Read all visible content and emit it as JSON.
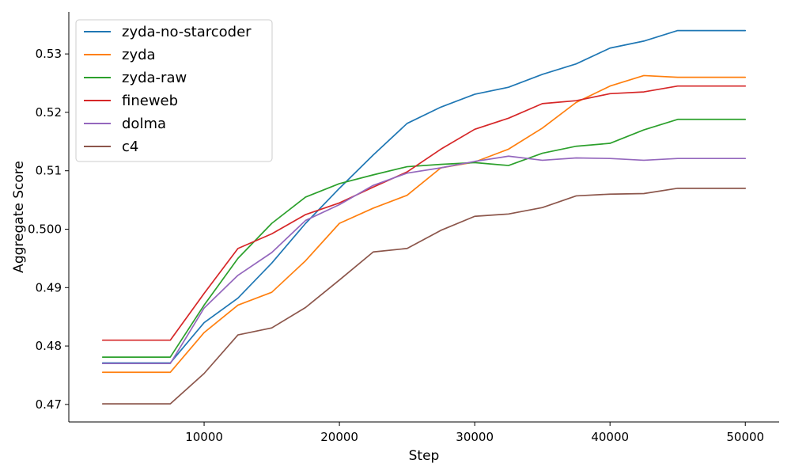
{
  "chart_data": {
    "type": "line",
    "xlabel": "Step",
    "ylabel": "Aggregate Score",
    "xlim": [
      0,
      52500
    ],
    "ylim": [
      0.467,
      0.5372
    ],
    "xticks": [
      10000,
      20000,
      30000,
      40000,
      50000
    ],
    "xtick_labels": [
      "10000",
      "20000",
      "30000",
      "40000",
      "50000"
    ],
    "yticks": [
      0.47,
      0.48,
      0.49,
      0.5,
      0.51,
      0.52,
      0.53
    ],
    "ytick_labels": [
      "0.47",
      "0.48",
      "0.49",
      "0.500",
      "0.51",
      "0.52",
      "0.53"
    ],
    "grid": false,
    "legend_position": "upper-left",
    "x": [
      2500,
      5000,
      7500,
      10000,
      12500,
      15000,
      17500,
      20000,
      22500,
      25000,
      27500,
      30000,
      32500,
      35000,
      37500,
      40000,
      42500,
      45000,
      47500,
      50000
    ],
    "series": [
      {
        "name": "zyda-no-starcoder",
        "color": "#1f77b4",
        "values": [
          0.4771,
          0.4771,
          0.4771,
          0.484,
          0.4882,
          0.4942,
          0.501,
          0.507,
          0.5127,
          0.5181,
          0.5209,
          0.5231,
          0.5243,
          0.5265,
          0.5283,
          0.531,
          0.5322,
          0.534,
          0.534,
          0.534
        ]
      },
      {
        "name": "zyda",
        "color": "#ff7f0e",
        "values": [
          0.4755,
          0.4755,
          0.4755,
          0.4823,
          0.487,
          0.4892,
          0.4946,
          0.501,
          0.5036,
          0.5058,
          0.5105,
          0.5115,
          0.5137,
          0.5173,
          0.5217,
          0.5245,
          0.5263,
          0.526,
          0.526,
          0.526
        ]
      },
      {
        "name": "zyda-raw",
        "color": "#2ca02c",
        "values": [
          0.4781,
          0.4781,
          0.4781,
          0.487,
          0.495,
          0.501,
          0.5055,
          0.5078,
          0.5093,
          0.5107,
          0.5111,
          0.5114,
          0.5109,
          0.513,
          0.5142,
          0.5147,
          0.517,
          0.5188,
          0.5188,
          0.5188
        ]
      },
      {
        "name": "fineweb",
        "color": "#d62728",
        "values": [
          0.481,
          0.481,
          0.481,
          0.489,
          0.4967,
          0.4992,
          0.5025,
          0.5045,
          0.5072,
          0.5098,
          0.5137,
          0.5171,
          0.519,
          0.5215,
          0.522,
          0.5232,
          0.5235,
          0.5245,
          0.5245,
          0.5245
        ]
      },
      {
        "name": "dolma",
        "color": "#9467bd",
        "values": [
          0.477,
          0.477,
          0.477,
          0.4865,
          0.4921,
          0.496,
          0.5015,
          0.5042,
          0.5075,
          0.5096,
          0.5105,
          0.5116,
          0.5125,
          0.5118,
          0.5122,
          0.5121,
          0.5118,
          0.5121,
          0.5121,
          0.5121
        ]
      },
      {
        "name": "c4",
        "color": "#8c564b",
        "values": [
          0.4701,
          0.4701,
          0.4701,
          0.4753,
          0.4819,
          0.4831,
          0.4866,
          0.4913,
          0.4961,
          0.4967,
          0.4998,
          0.5022,
          0.5026,
          0.5037,
          0.5057,
          0.506,
          0.5061,
          0.507,
          0.507,
          0.507
        ]
      }
    ]
  }
}
